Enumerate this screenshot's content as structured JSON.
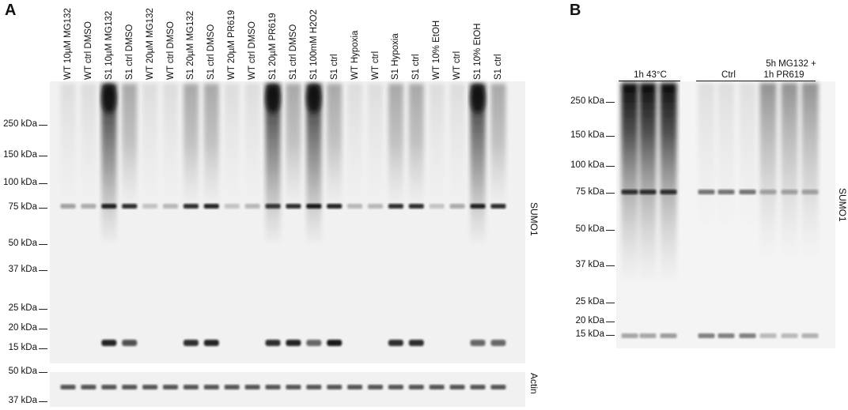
{
  "panels": {
    "a": {
      "letter": "A",
      "lanes": [
        "WT 10µM MG132",
        "WT ctrl DMSO",
        "S1 10µM MG132",
        "S1 ctrl DMSO",
        "WT 20µM MG132",
        "WT ctrl DMSO",
        "S1 20µM MG132",
        "S1 ctrl DMSO",
        "WT 20µM PR619",
        "WT ctrl DMSO",
        "S1 20µM PR619",
        "S1 ctrl DMSO",
        "S1 100mM H2O2",
        "S1 ctrl",
        "WT Hypoxia",
        "WT ctrl",
        "S1 Hypoxia",
        "S1 ctrl",
        "WT 10% EtOH",
        "WT ctrl",
        "S1 10% EtOH",
        "S1 ctrl"
      ],
      "markers_sumo": [
        "250 kDa",
        "150 kDa",
        "100 kDa",
        "75 kDa",
        "50 kDa",
        "37 kDa",
        "25 kDa",
        "20 kDa",
        "15 kDa"
      ],
      "markers_actin": [
        "50 kDa",
        "37 kDa"
      ],
      "blot_label": "SUMO1",
      "actin_label": "Actin"
    },
    "b": {
      "letter": "B",
      "groups": [
        "1h 43°C",
        "Ctrl",
        "5h MG132 +",
        "1h PR619"
      ],
      "markers": [
        "250 kDa",
        "150 kDa",
        "100 kDa",
        "75 kDa",
        "50 kDa",
        "37 kDa",
        "25 kDa",
        "20 kDa",
        "15 kDa"
      ],
      "blot_label": "SUMO1"
    }
  }
}
